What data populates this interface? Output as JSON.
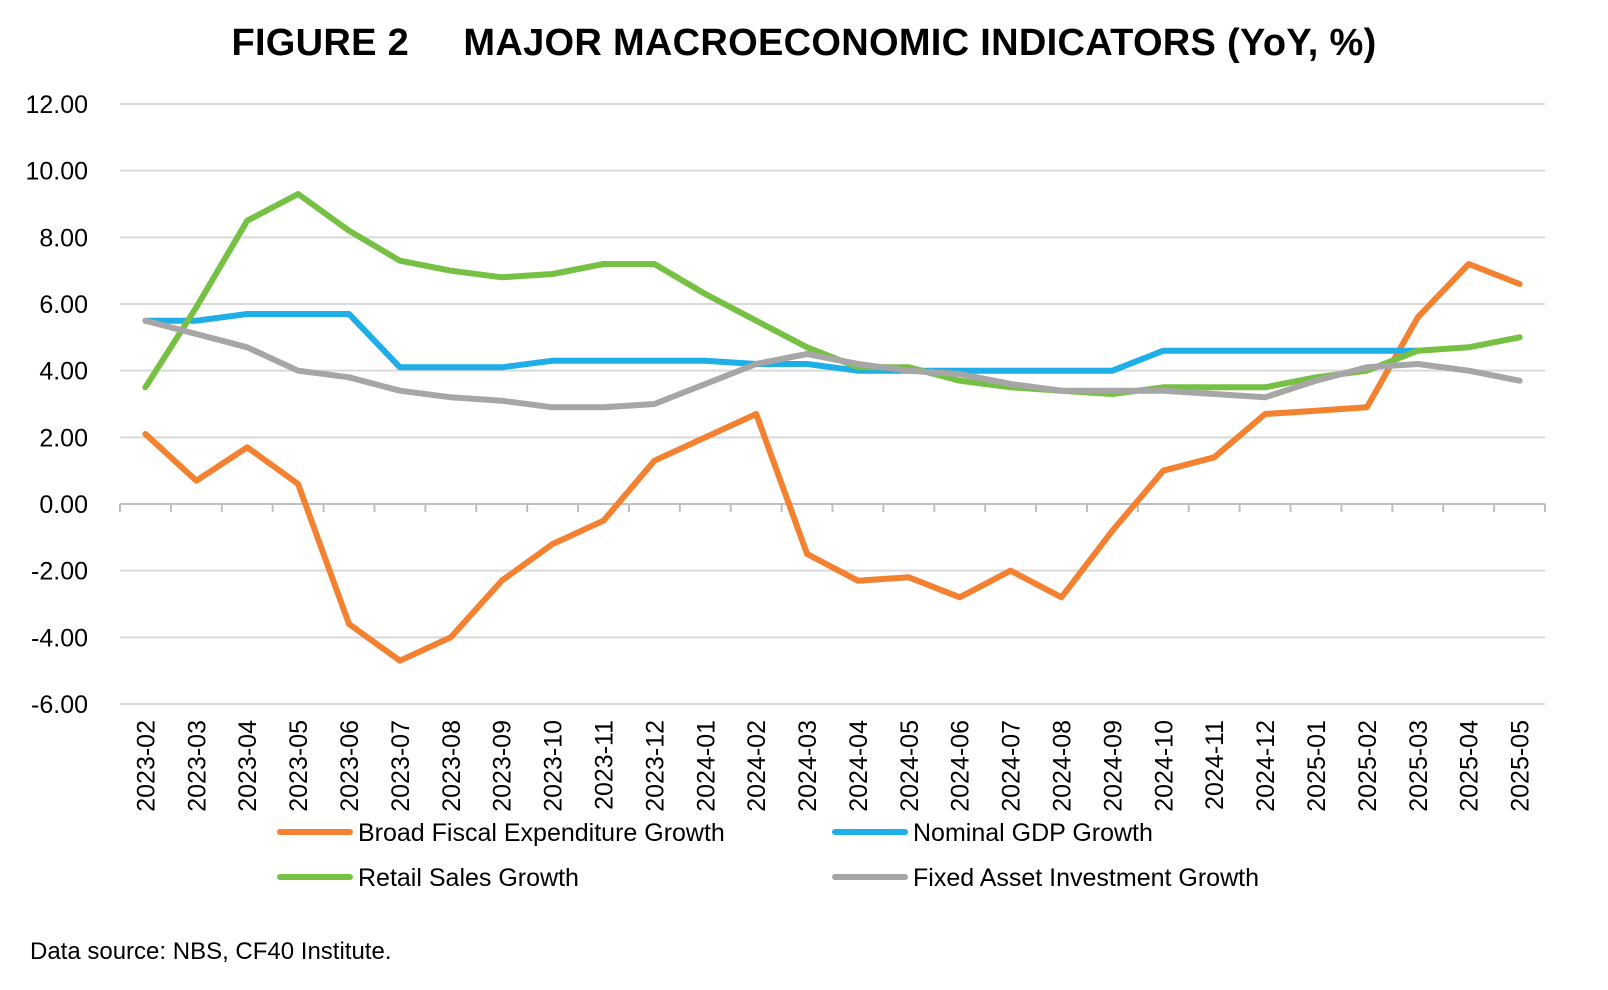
{
  "title": "FIGURE 2     MAJOR MACROECONOMIC INDICATORS (YoY, %)",
  "source_note": "Data source: NBS, CF40 Institute.",
  "chart_data": {
    "type": "line",
    "title": "FIGURE 2     MAJOR MACROECONOMIC INDICATORS (YoY, %)",
    "xlabel": "",
    "ylabel": "",
    "ylim": [
      -6,
      12
    ],
    "yticks": [
      "12.00",
      "10.00",
      "8.00",
      "6.00",
      "4.00",
      "2.00",
      "0.00",
      "-2.00",
      "-4.00",
      "-6.00"
    ],
    "grid": true,
    "legend_position": "bottom",
    "categories": [
      "2023-02",
      "2023-03",
      "2023-04",
      "2023-05",
      "2023-06",
      "2023-07",
      "2023-08",
      "2023-09",
      "2023-10",
      "2023-11",
      "2023-12",
      "2024-01",
      "2024-02",
      "2024-03",
      "2024-04",
      "2024-05",
      "2024-06",
      "2024-07",
      "2024-08",
      "2024-09",
      "2024-10",
      "2024-11",
      "2024-12",
      "2025-01",
      "2025-02",
      "2025-03",
      "2025-04",
      "2025-05"
    ],
    "series": [
      {
        "name": "Broad Fiscal Expenditure Growth",
        "color": "#F4812F",
        "values": [
          2.1,
          0.7,
          1.7,
          0.6,
          -3.6,
          -4.7,
          -4.0,
          -2.3,
          -1.2,
          -0.5,
          1.3,
          2.0,
          2.7,
          -1.5,
          -2.3,
          -2.2,
          -2.8,
          -2.0,
          -2.8,
          -0.8,
          1.0,
          1.4,
          2.7,
          2.8,
          2.9,
          5.6,
          7.2,
          6.6
        ]
      },
      {
        "name": "Nominal GDP Growth",
        "color": "#1EAEE8",
        "values": [
          5.5,
          5.5,
          5.7,
          5.7,
          5.7,
          4.1,
          4.1,
          4.1,
          4.3,
          4.3,
          4.3,
          4.3,
          4.2,
          4.2,
          4.0,
          4.0,
          4.0,
          4.0,
          4.0,
          4.0,
          4.6,
          4.6,
          4.6,
          4.6,
          4.6,
          4.6,
          null,
          null
        ]
      },
      {
        "name": "Retail Sales Growth",
        "color": "#76C043",
        "values": [
          3.5,
          5.9,
          8.5,
          9.3,
          8.2,
          7.3,
          7.0,
          6.8,
          6.9,
          7.2,
          7.2,
          6.3,
          5.5,
          4.7,
          4.1,
          4.1,
          3.7,
          3.5,
          3.4,
          3.3,
          3.5,
          3.5,
          3.5,
          3.8,
          4.0,
          4.6,
          4.7,
          5.0
        ]
      },
      {
        "name": "Fixed Asset Investment Growth",
        "color": "#A6A6A6",
        "values": [
          5.5,
          5.1,
          4.7,
          4.0,
          3.8,
          3.4,
          3.2,
          3.1,
          2.9,
          2.9,
          3.0,
          3.6,
          4.2,
          4.5,
          4.2,
          4.0,
          3.9,
          3.6,
          3.4,
          3.4,
          3.4,
          3.3,
          3.2,
          3.7,
          4.1,
          4.2,
          4.0,
          3.7
        ]
      }
    ]
  }
}
